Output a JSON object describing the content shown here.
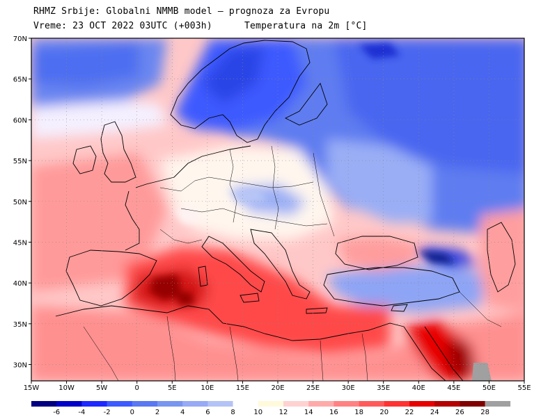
{
  "header": {
    "title": "RHMZ Srbije: Globalni NMMB model — prognoza za Evropu",
    "time": "Vreme: 23 OCT 2022 03UTC (+003h)",
    "variable": "Temperatura na 2m [°C]"
  },
  "map": {
    "projection": "lat-lon",
    "lon_range": [
      -15,
      55
    ],
    "lat_range": [
      28,
      70
    ],
    "lat_ticks": [
      "30N",
      "35N",
      "40N",
      "45N",
      "50N",
      "55N",
      "60N",
      "65N",
      "70N"
    ],
    "lat_values": [
      30,
      35,
      40,
      45,
      50,
      55,
      60,
      65,
      70
    ],
    "lon_ticks": [
      "15W",
      "10W",
      "5W",
      "0",
      "5E",
      "10E",
      "15E",
      "20E",
      "25E",
      "30E",
      "35E",
      "40E",
      "45E",
      "50E",
      "55E"
    ],
    "lon_values": [
      -15,
      -10,
      -5,
      0,
      5,
      10,
      15,
      20,
      25,
      30,
      35,
      40,
      45,
      50,
      55
    ],
    "grid": "dotted"
  },
  "colorbar": {
    "labels": [
      "-6",
      "-4",
      "-2",
      "0",
      "2",
      "4",
      "6",
      "8",
      "10",
      "12",
      "14",
      "16",
      "18",
      "20",
      "22",
      "24",
      "26",
      "28"
    ],
    "colors": [
      "#000080",
      "#0000c8",
      "#1e28ff",
      "#3c5aff",
      "#5a78f0",
      "#7896f0",
      "#96aaf5",
      "#b4c3f5",
      "#ffffff",
      "#fffadc",
      "#ffd2d2",
      "#ffaaaa",
      "#ff8282",
      "#ff5a5a",
      "#ff3232",
      "#e60000",
      "#b40000",
      "#800000",
      "#a0a0a0"
    ]
  }
}
